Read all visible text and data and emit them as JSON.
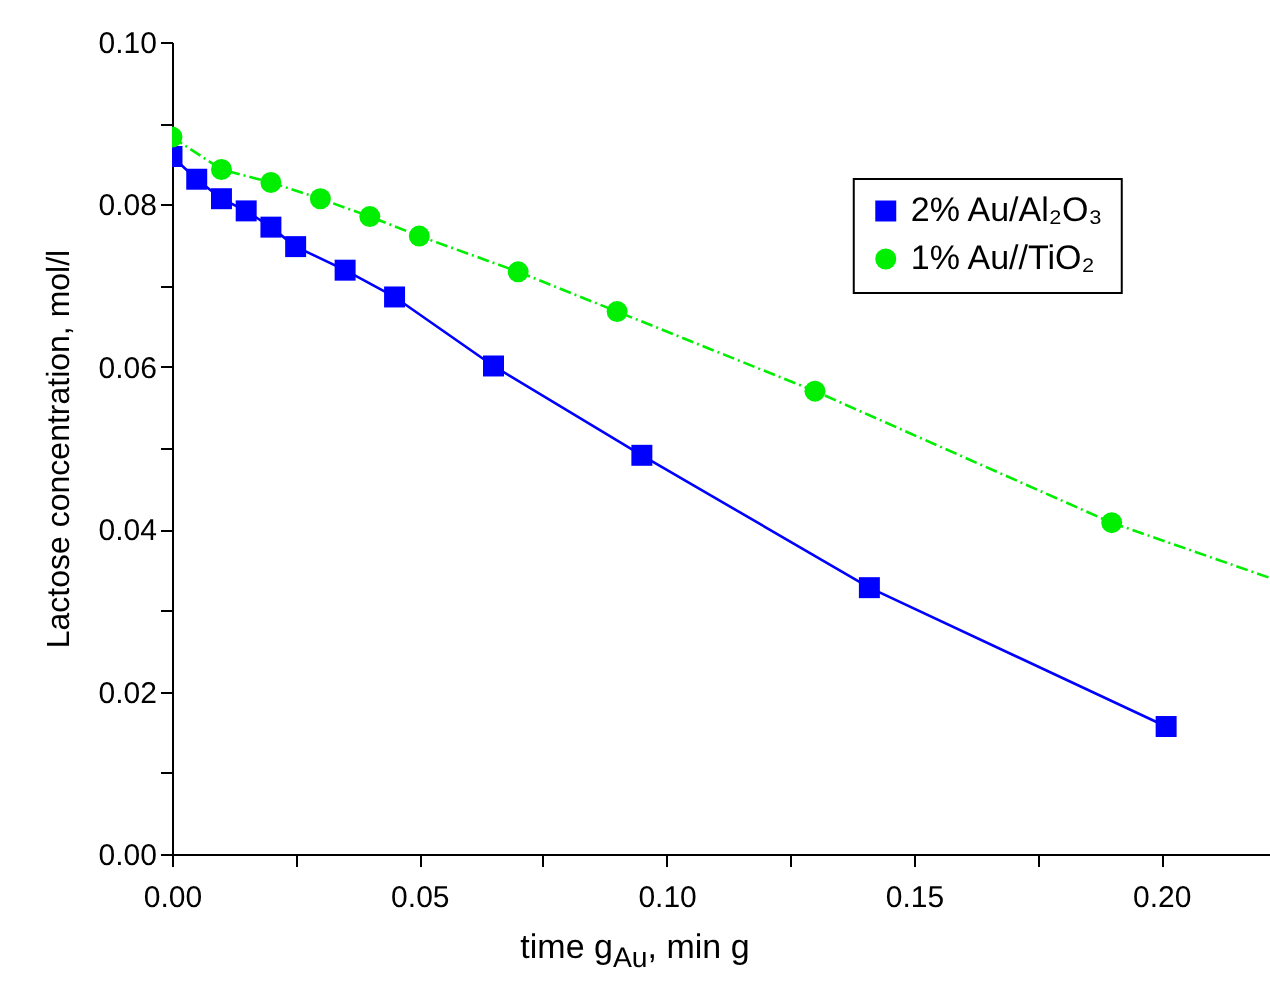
{
  "chart_data": {
    "type": "line",
    "xlabel": "time g$_{Au}$, min g",
    "ylabel": "Lactose concentration, mol/l",
    "xlim": [
      0,
      0.222
    ],
    "xticks": [
      {
        "value": 0,
        "label": "0.00"
      },
      {
        "value": 0.025,
        "label": null
      },
      {
        "value": 0.05,
        "label": "0.05"
      },
      {
        "value": 0.075,
        "label": null
      },
      {
        "value": 0.1,
        "label": "0.10"
      },
      {
        "value": 0.125,
        "label": null
      },
      {
        "value": 0.15,
        "label": "0.15"
      },
      {
        "value": 0.175,
        "label": null
      },
      {
        "value": 0.2,
        "label": "0.20"
      }
    ],
    "ylim": [
      0,
      0.1
    ],
    "yticks": [
      {
        "value": 0,
        "label": "0.00"
      },
      {
        "value": 0.01,
        "label": null
      },
      {
        "value": 0.02,
        "label": "0.02"
      },
      {
        "value": 0.03,
        "label": null
      },
      {
        "value": 0.04,
        "label": "0.04"
      },
      {
        "value": 0.05,
        "label": null
      },
      {
        "value": 0.06,
        "label": "0.06"
      },
      {
        "value": 0.07,
        "label": null
      },
      {
        "value": 0.08,
        "label": "0.08"
      },
      {
        "value": 0.09,
        "label": null
      },
      {
        "value": 0.1,
        "label": "0.10"
      }
    ],
    "grid": false,
    "legend": "top right",
    "series": [
      {
        "name": "2% Au/Al₂O₃",
        "color": "#0000ff",
        "marker": "square",
        "line_style": "solid",
        "x": [
          0,
          0.005,
          0.01,
          0.015,
          0.02,
          0.025,
          0.035,
          0.045,
          0.065,
          0.095,
          0.141,
          0.201
        ],
        "values": [
          0.0859,
          0.0831,
          0.0807,
          0.0792,
          0.0772,
          0.0748,
          0.0719,
          0.0686,
          0.0601,
          0.0491,
          0.0328,
          0.0157
        ]
      },
      {
        "name": "1% Au//TiO₂",
        "color": "#00ee00",
        "marker": "circle",
        "line_style": "dashed",
        "x": [
          0,
          0.01,
          0.02,
          0.03,
          0.04,
          0.05,
          0.07,
          0.09,
          0.13,
          0.19
        ],
        "values": [
          0.0883,
          0.0843,
          0.0827,
          0.0807,
          0.0785,
          0.0761,
          0.0717,
          0.0668,
          0.057,
          0.0408
        ]
      },
      {
        "color": "#00ee00",
        "marker": "none",
        "line_style": "dashed",
        "x": [
          0.19,
          0.222
        ],
        "values": [
          0.0408,
          0.034
        ]
      }
    ]
  }
}
